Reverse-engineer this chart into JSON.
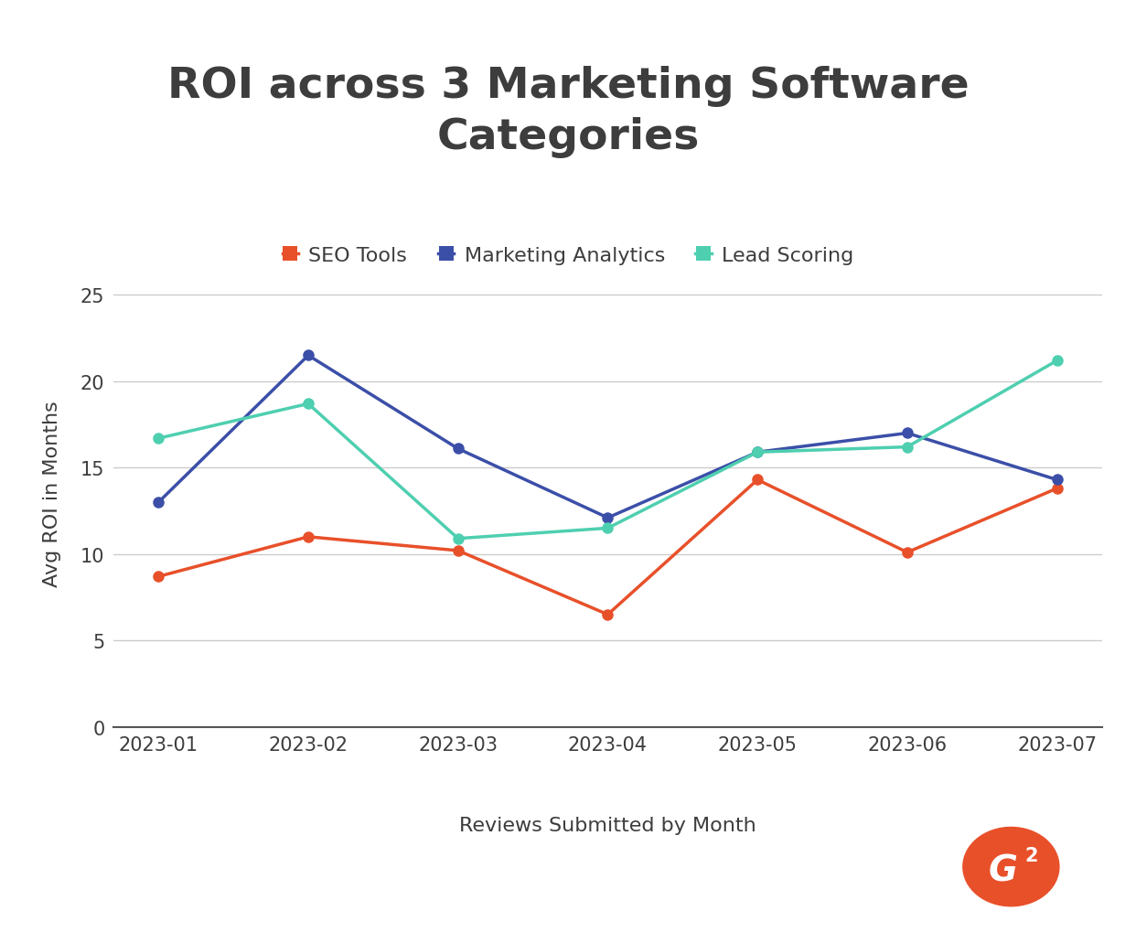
{
  "title": "ROI across 3 Marketing Software\nCategories",
  "xlabel": "Reviews Submitted by Month",
  "ylabel": "Avg ROI in Months",
  "x_labels": [
    "2023-01",
    "2023-02",
    "2023-03",
    "2023-04",
    "2023-05",
    "2023-06",
    "2023-07"
  ],
  "seo_tools": [
    8.7,
    11.0,
    10.2,
    6.5,
    14.3,
    10.1,
    13.8
  ],
  "marketing_analytics": [
    13.0,
    21.5,
    16.1,
    12.1,
    15.9,
    17.0,
    14.3
  ],
  "lead_scoring": [
    16.7,
    18.7,
    10.9,
    11.5,
    15.9,
    16.2,
    21.2
  ],
  "seo_color": "#E8502A",
  "analytics_color": "#3B4FA8",
  "lead_color": "#4ECFB0",
  "ylim": [
    0,
    27
  ],
  "yticks": [
    0,
    5,
    10,
    15,
    20,
    25
  ],
  "title_fontsize": 34,
  "axis_label_fontsize": 16,
  "tick_fontsize": 15,
  "legend_fontsize": 16,
  "background_color": "#ffffff",
  "grid_color": "#cccccc",
  "title_color": "#3d3d3d",
  "axis_text_color": "#3d3d3d",
  "line_width": 2.5,
  "marker_size": 8,
  "g2_color": "#E8502A",
  "legend_labels": [
    "SEO Tools",
    "Marketing Analytics",
    "Lead Scoring"
  ]
}
